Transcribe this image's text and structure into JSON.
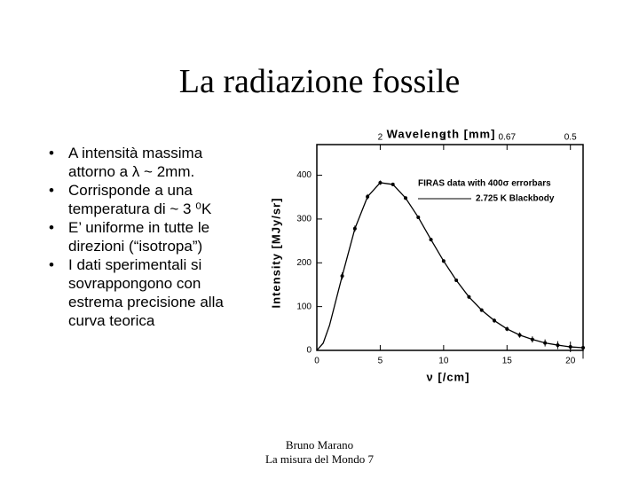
{
  "slide": {
    "title": "La radiazione fossile",
    "bullets": [
      "A intensità massima attorno a  λ ~ 2mm.",
      "Corrisponde a una temperatura di ~ 3 ⁰K",
      "E’ uniforme in tutte le direzioni (“isotropa”)",
      "I dati sperimentali si sovrappongono con estrema precisione alla curva teorica"
    ],
    "footer": [
      "Bruno Marano",
      "La   misura del Mondo 7"
    ]
  },
  "chart_data": {
    "type": "scatter",
    "x_label": "ν [/cm]",
    "y_label": "Intensity [MJy/sr]",
    "x2_label": "Wavelength [mm]",
    "xlim": [
      0,
      21
    ],
    "ylim": [
      0,
      470
    ],
    "xticks": [
      0,
      5,
      10,
      15,
      20
    ],
    "yticks": [
      0,
      100,
      200,
      300,
      400
    ],
    "x2ticks": [
      {
        "value": 5,
        "label": "2"
      },
      {
        "value": 10,
        "label": "1"
      },
      {
        "value": 15,
        "label": "0.67"
      },
      {
        "value": 20,
        "label": "0.5"
      }
    ],
    "legend": "upper right",
    "series": [
      {
        "name": "FIRAS data with 400σ errorbars",
        "color": "#000000",
        "style": "points",
        "x": [
          2,
          3,
          4,
          5,
          6,
          7,
          8,
          9,
          10,
          11,
          12,
          13,
          14,
          15,
          16,
          17,
          18,
          19,
          20,
          21
        ],
        "values": [
          170,
          278,
          351,
          383,
          379,
          348,
          304,
          253,
          204,
          160,
          122,
          92,
          68,
          49,
          35,
          25,
          17,
          12,
          8,
          6
        ],
        "errors": [
          8,
          7,
          6,
          5,
          4,
          4,
          4,
          4,
          4,
          4,
          4,
          4,
          5,
          5,
          6,
          7,
          8,
          9,
          12,
          25
        ]
      },
      {
        "name": "2.725 K Blackbody",
        "color": "#000000",
        "style": "line",
        "x": [
          0,
          0.5,
          1,
          2,
          3,
          4,
          5,
          6,
          7,
          8,
          9,
          10,
          11,
          12,
          13,
          14,
          15,
          16,
          17,
          18,
          19,
          20,
          21
        ],
        "values": [
          0,
          16.5,
          57,
          170,
          278,
          351,
          383,
          379,
          348,
          304,
          253,
          204,
          160,
          122,
          92,
          68,
          49,
          35,
          25,
          17,
          12,
          8,
          6
        ]
      }
    ]
  }
}
